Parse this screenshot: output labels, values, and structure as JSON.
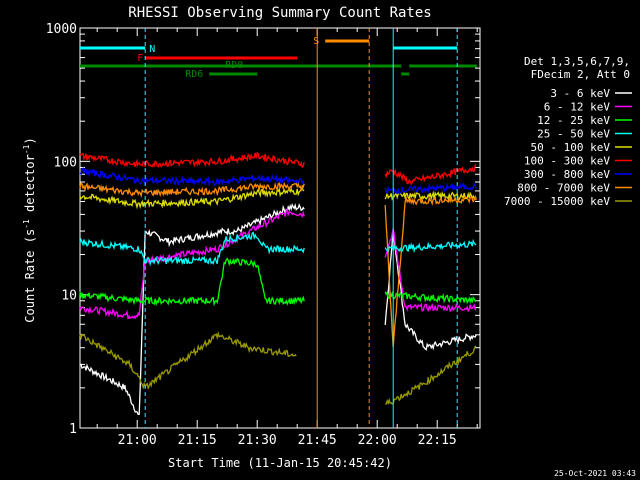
{
  "chart_data": {
    "type": "line",
    "title": "RHESSI Observing Summary Count Rates",
    "xlabel": "Start Time (11-Jan-15 20:45:42)",
    "ylabel": "Count Rate (s",
    "ylabel_sup1": "-1",
    "ylabel_mid": " detector",
    "ylabel_sup2": "-1",
    "ylabel_end": ")",
    "y_scale": "log",
    "ylim": [
      1,
      1000
    ],
    "xlim": [
      "20:45:42",
      "22:26:00"
    ],
    "x_ticks": [
      "21:00",
      "21:15",
      "21:30",
      "21:45",
      "22:00",
      "22:15"
    ],
    "y_ticks": [
      "1",
      "10",
      "100",
      "1000"
    ],
    "legend_header": [
      "Det 1,3,5,6,7,9,",
      "FDecim 2, Att 0"
    ],
    "series": [
      {
        "name": "3 - 6 keV",
        "color": "#ffffff"
      },
      {
        "name": "6 - 12 keV",
        "color": "#ff00ff"
      },
      {
        "name": "12 - 25 keV",
        "color": "#00ff00"
      },
      {
        "name": "25 - 50 keV",
        "color": "#00ffff"
      },
      {
        "name": "50 - 100 keV",
        "color": "#dddd00"
      },
      {
        "name": "100 - 300 keV",
        "color": "#ff0000"
      },
      {
        "name": "300 - 800 keV",
        "color": "#0000ff"
      },
      {
        "name": "800 - 7000 keV",
        "color": "#ff8c00"
      },
      {
        "name": "7000 - 15000 keV",
        "color": "#999900"
      }
    ],
    "flags": [
      {
        "label": "N",
        "color": "#00ffff"
      },
      {
        "label": "F",
        "color": "#ff0000"
      },
      {
        "label": "S",
        "color": "#ff8c00"
      },
      {
        "label": "RD0",
        "color": "#008800"
      },
      {
        "label": "RD6",
        "color": "#008800"
      }
    ],
    "timestamp": "25-Oct-2021 03:43"
  }
}
